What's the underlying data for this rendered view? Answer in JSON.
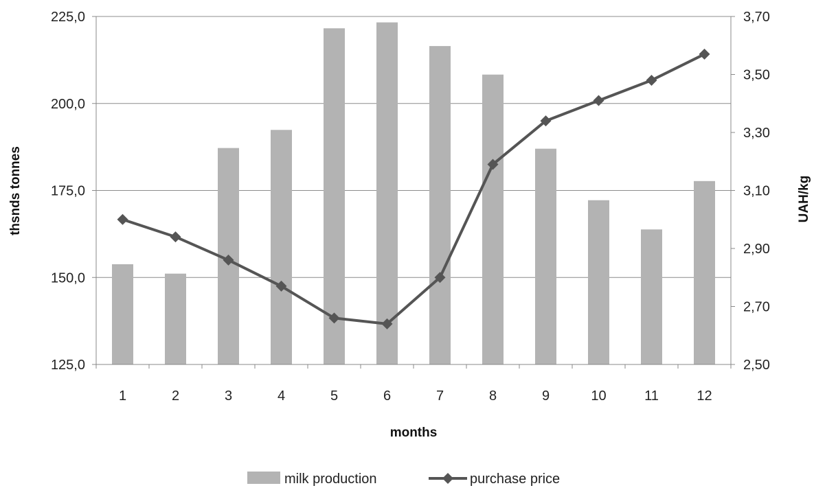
{
  "chart_data": {
    "type": "bar+line",
    "categories": [
      "1",
      "2",
      "3",
      "4",
      "5",
      "6",
      "7",
      "8",
      "9",
      "10",
      "11",
      "12"
    ],
    "series": [
      {
        "name": "milk production",
        "type": "bar",
        "axis": "left",
        "color": "#b3b3b3",
        "values": [
          153.8,
          151.1,
          187.2,
          192.4,
          221.6,
          223.3,
          216.5,
          208.3,
          187.0,
          172.2,
          163.8,
          177.7
        ]
      },
      {
        "name": "purchase price",
        "type": "line",
        "axis": "right",
        "color": "#555555",
        "marker": "diamond",
        "values": [
          3.0,
          2.94,
          2.86,
          2.77,
          2.66,
          2.64,
          2.8,
          3.19,
          3.34,
          3.41,
          3.48,
          3.57
        ]
      }
    ],
    "xlabel": "months",
    "ylabel_left": "thsnds tonnes",
    "ylabel_right": "UAH/kg",
    "ylim_left": [
      125,
      225
    ],
    "ylim_right": [
      2.5,
      3.7
    ],
    "yticks_left": [
      "125,0",
      "150,0",
      "175,0",
      "200,0",
      "225,0"
    ],
    "yticks_right": [
      "2,50",
      "2,70",
      "2,90",
      "3,10",
      "3,30",
      "3,50",
      "3,70"
    ],
    "grid": "horizontal",
    "legend_position": "bottom"
  }
}
